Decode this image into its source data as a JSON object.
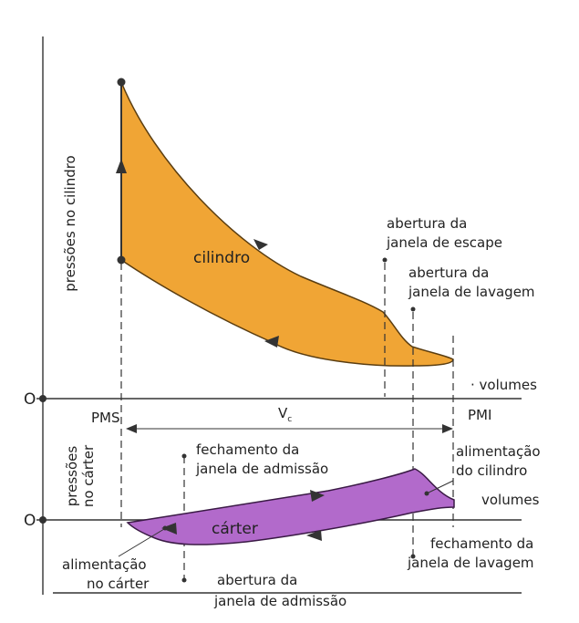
{
  "upper": {
    "y_axis_label": "pressões no cilindro",
    "origin": "O",
    "x_axis_label": "volumes",
    "area_label": "cilindro",
    "annotations": [
      {
        "lines": [
          "abertura da",
          "janela de escape"
        ]
      },
      {
        "lines": [
          "abertura da",
          "janela de lavagem"
        ]
      }
    ]
  },
  "middle": {
    "left": "PMS",
    "right": "PMI",
    "span": {
      "main": "V",
      "sub": "c"
    }
  },
  "lower": {
    "y_axis_label": [
      "pressões",
      "no cárter"
    ],
    "origin": "O",
    "x_axis_label": "volumes",
    "area_label": "cárter",
    "annotations": [
      {
        "lines": [
          "fechamento da",
          "janela de admissão"
        ]
      },
      {
        "lines": [
          "alimentação",
          "do cilindro"
        ]
      },
      {
        "lines": [
          "alimentação",
          "no cárter"
        ]
      },
      {
        "lines": [
          "fechamento da",
          "janela de lavagem"
        ]
      },
      {
        "lines": [
          "abertura da",
          "janela de admissão"
        ]
      }
    ]
  }
}
